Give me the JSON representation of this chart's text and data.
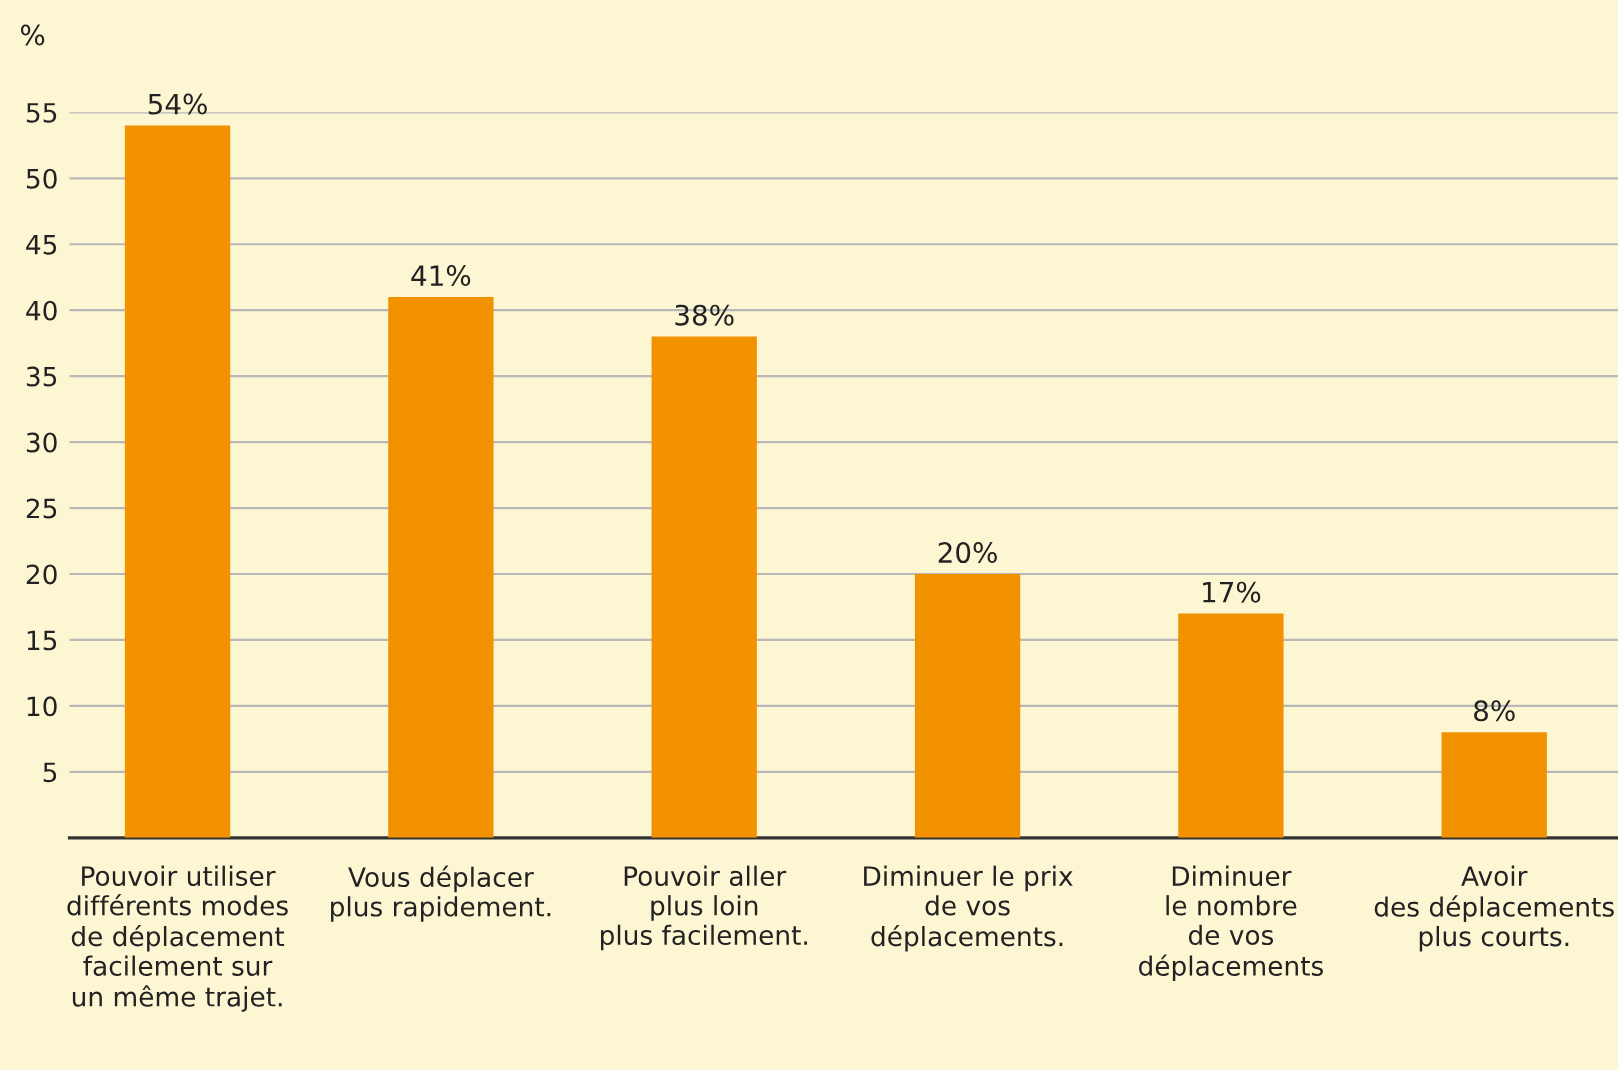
{
  "chart_data": {
    "type": "bar",
    "ylabel": "%",
    "categories": [
      "Pouvoir utiliser\ndifférents modes\nde déplacement\nfacilement sur\nun même trajet.",
      "Vous déplacer\nplus rapidement.",
      "Pouvoir aller\nplus loin\nplus facilement.",
      "Diminuer le prix\nde vos\ndéplacements.",
      "Diminuer\nle nombre\nde vos\ndéplacements",
      "Avoir\ndes déplacements\nplus courts."
    ],
    "values": [
      54,
      41,
      38,
      20,
      17,
      8
    ],
    "value_labels": [
      "54%",
      "41%",
      "38%",
      "20%",
      "17%",
      "8%"
    ],
    "color": "#f39200",
    "ylim": [
      0,
      55
    ],
    "yticks": [
      5,
      10,
      15,
      20,
      25,
      30,
      35,
      40,
      45,
      50,
      55
    ],
    "grid": "y"
  }
}
